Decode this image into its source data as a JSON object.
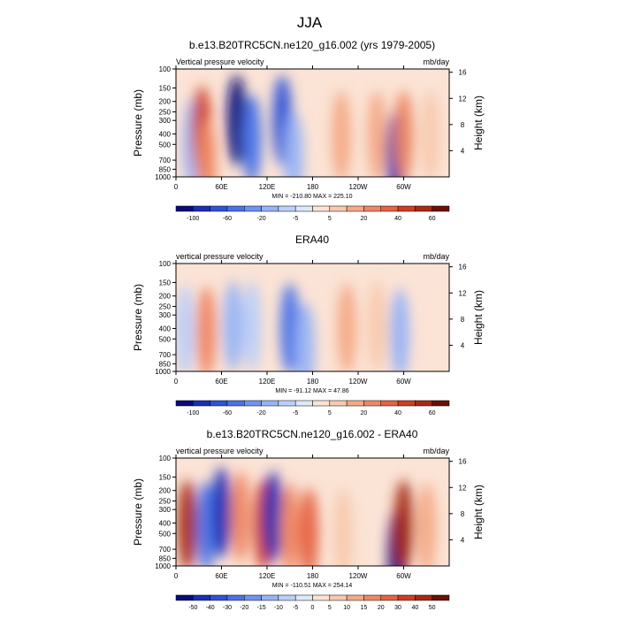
{
  "figure": {
    "title": "JJA"
  },
  "chart_data": [
    {
      "type": "heatmap",
      "title": "b.e13.B20TRC5CN.ne120_g16.002 (yrs 1979-2005)",
      "left_label": "Vertical pressure velocity",
      "right_label": "mb/day",
      "ylabel": "Pressure (mb)",
      "y2label": "Height (km)",
      "x_ticks": [
        "0",
        "60E",
        "120E",
        "180",
        "120W",
        "60W"
      ],
      "x_tick_lon": [
        0,
        60,
        120,
        180,
        240,
        300
      ],
      "xlim": [
        0,
        360
      ],
      "y_ticks": [
        "100",
        "150",
        "200",
        "250",
        "300",
        "400",
        "500",
        "700",
        "850",
        "1000"
      ],
      "y_tick_p": [
        100,
        150,
        200,
        250,
        300,
        400,
        500,
        700,
        850,
        1000
      ],
      "ylim": [
        100,
        1000
      ],
      "y2_ticks": [
        "16",
        "12",
        "8",
        "4"
      ],
      "y2_tick_km": [
        16,
        12,
        8,
        4
      ],
      "stats": "MIN = -210.80   MAX = 225.10",
      "colorbar_labels": [
        "-100",
        "-60",
        "-20",
        "-5",
        "5",
        "20",
        "40",
        "60"
      ],
      "colorbar_colors": [
        "#0a0a7a",
        "#1a2fb5",
        "#2f52d6",
        "#4a72e8",
        "#6f93f0",
        "#97b3f5",
        "#bccff8",
        "#dde8fa",
        "#fbe3d5",
        "#f8c9ae",
        "#f4a987",
        "#ee8762",
        "#e56340",
        "#cf3e22",
        "#a82a14",
        "#6e0f05"
      ],
      "features": [
        {
          "lon": 22,
          "p": 500,
          "value": -40
        },
        {
          "lon": 34,
          "p": 380,
          "value": 70
        },
        {
          "lon": 40,
          "p": 760,
          "value": 40
        },
        {
          "lon": 80,
          "p": 300,
          "value": -110
        },
        {
          "lon": 100,
          "p": 450,
          "value": -55
        },
        {
          "lon": 140,
          "p": 300,
          "value": -70
        },
        {
          "lon": 155,
          "p": 650,
          "value": -40
        },
        {
          "lon": 218,
          "p": 420,
          "value": 35
        },
        {
          "lon": 265,
          "p": 420,
          "value": 30
        },
        {
          "lon": 290,
          "p": 650,
          "value": -90
        },
        {
          "lon": 300,
          "p": 420,
          "value": 40
        },
        {
          "lon": 335,
          "p": 420,
          "value": 20
        }
      ]
    },
    {
      "type": "heatmap",
      "title": "ERA40",
      "left_label": "vertical pressure velocity",
      "right_label": "mb/day",
      "ylabel": "Pressure (mb)",
      "y2label": "Height (km)",
      "x_ticks": [
        "0",
        "60E",
        "120E",
        "180",
        "120W",
        "60W"
      ],
      "x_tick_lon": [
        0,
        60,
        120,
        180,
        240,
        300
      ],
      "xlim": [
        0,
        360
      ],
      "y_ticks": [
        "100",
        "150",
        "200",
        "250",
        "300",
        "400",
        "500",
        "700",
        "850",
        "1000"
      ],
      "y_tick_p": [
        100,
        150,
        200,
        250,
        300,
        400,
        500,
        700,
        850,
        1000
      ],
      "ylim": [
        100,
        1000
      ],
      "y2_ticks": [
        "16",
        "12",
        "8",
        "4"
      ],
      "y2_tick_km": [
        16,
        12,
        8,
        4
      ],
      "stats": "MIN = -91.12   MAX = 47.86",
      "colorbar_labels": [
        "-100",
        "-60",
        "-20",
        "-5",
        "5",
        "20",
        "40",
        "60"
      ],
      "colorbar_colors": [
        "#0a0a7a",
        "#1a2fb5",
        "#2f52d6",
        "#4a72e8",
        "#6f93f0",
        "#97b3f5",
        "#bccff8",
        "#dde8fa",
        "#fbe3d5",
        "#f8c9ae",
        "#f4a987",
        "#ee8762",
        "#e56340",
        "#cf3e22",
        "#a82a14",
        "#6e0f05"
      ],
      "features": [
        {
          "lon": 12,
          "p": 420,
          "value": -20
        },
        {
          "lon": 40,
          "p": 430,
          "value": 47
        },
        {
          "lon": 75,
          "p": 380,
          "value": -40
        },
        {
          "lon": 100,
          "p": 380,
          "value": -20
        },
        {
          "lon": 150,
          "p": 400,
          "value": -60
        },
        {
          "lon": 170,
          "p": 600,
          "value": -30
        },
        {
          "lon": 225,
          "p": 400,
          "value": 30
        },
        {
          "lon": 265,
          "p": 380,
          "value": 25
        },
        {
          "lon": 295,
          "p": 450,
          "value": -40
        },
        {
          "lon": 330,
          "p": 400,
          "value": 12
        }
      ]
    },
    {
      "type": "heatmap",
      "title": "b.e13.B20TRC5CN.ne120_g16.002 - ERA40",
      "left_label": "vertical pressure velocity",
      "right_label": "mb/day",
      "ylabel": "Pressure (mb)",
      "y2label": "Height (km)",
      "x_ticks": [
        "0",
        "60E",
        "120E",
        "180",
        "120W",
        "60W"
      ],
      "x_tick_lon": [
        0,
        60,
        120,
        180,
        240,
        300
      ],
      "xlim": [
        0,
        360
      ],
      "y_ticks": [
        "100",
        "150",
        "200",
        "250",
        "300",
        "400",
        "500",
        "700",
        "850",
        "1000"
      ],
      "y_tick_p": [
        100,
        150,
        200,
        250,
        300,
        400,
        500,
        700,
        850,
        1000
      ],
      "ylim": [
        100,
        1000
      ],
      "y2_ticks": [
        "16",
        "12",
        "8",
        "4"
      ],
      "y2_tick_km": [
        16,
        12,
        8,
        4
      ],
      "stats": "MIN = -110.51   MAX = 254.14",
      "colorbar_labels": [
        "-50",
        "-40",
        "-30",
        "-20",
        "-15",
        "-10",
        "-5",
        "0",
        "5",
        "10",
        "15",
        "20",
        "30",
        "40",
        "50"
      ],
      "colorbar_colors": [
        "#0a0a7a",
        "#1a2fb5",
        "#2f52d6",
        "#4a72e8",
        "#6f93f0",
        "#97b3f5",
        "#bccff8",
        "#dde8fa",
        "#fbe3d5",
        "#f8c9ae",
        "#f4a987",
        "#ee8762",
        "#e56340",
        "#cf3e22",
        "#a82a14",
        "#6e0f05"
      ],
      "features": [
        {
          "lon": 15,
          "p": 420,
          "value": 40
        },
        {
          "lon": 40,
          "p": 430,
          "value": -30
        },
        {
          "lon": 60,
          "p": 320,
          "value": -45
        },
        {
          "lon": 85,
          "p": 350,
          "value": 20
        },
        {
          "lon": 115,
          "p": 420,
          "value": 35
        },
        {
          "lon": 128,
          "p": 350,
          "value": -40
        },
        {
          "lon": 150,
          "p": 450,
          "value": 25
        },
        {
          "lon": 175,
          "p": 500,
          "value": 30
        },
        {
          "lon": 220,
          "p": 500,
          "value": 12
        },
        {
          "lon": 292,
          "p": 780,
          "value": -50
        },
        {
          "lon": 300,
          "p": 420,
          "value": 45
        },
        {
          "lon": 330,
          "p": 450,
          "value": 15
        }
      ]
    }
  ]
}
